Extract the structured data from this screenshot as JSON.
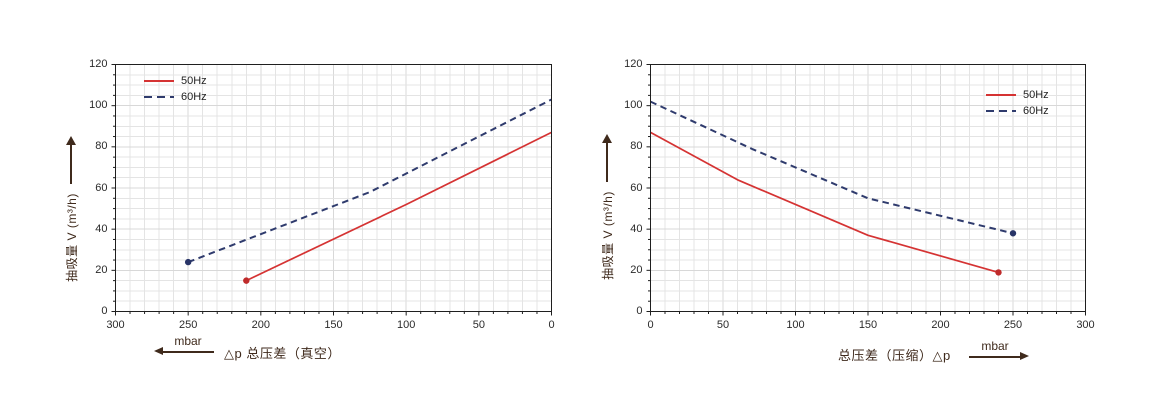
{
  "figure": {
    "description": "Two pump performance curves: suction capacity vs total pressure difference, vacuum (left) and compression (right)",
    "background": "#ffffff"
  },
  "colors": {
    "grid_minor": "#e4e4e4",
    "grid_major": "#d8d8d8",
    "plot_border": "#1f1f1f",
    "plot_background": "#ffffff",
    "tick_text": "#2b2b2b",
    "axis_label_text": "#3f2a1c",
    "legend_text": "#1f1f1f",
    "series_50hz": "#d53333",
    "series_60hz": "#2f3b6d"
  },
  "chart_data": [
    {
      "id": "vacuum",
      "type": "line",
      "title": "",
      "x_axis": {
        "label": "△p  总压差（真空）",
        "unit": "mbar",
        "arrow_direction": "left",
        "min": 0,
        "max": 300,
        "reversed": true,
        "ticks": [
          300,
          250,
          200,
          150,
          100,
          50,
          0
        ],
        "minor_step": 10
      },
      "y_axis": {
        "label": "抽吸量 V (m³/h)",
        "arrow_direction": "up",
        "min": 0,
        "max": 120,
        "ticks": [
          0,
          20,
          40,
          60,
          80,
          100,
          120
        ],
        "minor_step": 5
      },
      "grid": true,
      "legend_position": "top-left",
      "series": [
        {
          "name": "50Hz",
          "style": "solid",
          "color": "#d53333",
          "marker_color": "#bf2b2b",
          "points": [
            [
              210,
              15
            ],
            [
              100,
              52
            ],
            [
              0,
              87
            ]
          ],
          "marker_at_max_x": true
        },
        {
          "name": "60Hz",
          "style": "dashed",
          "color": "#2f3b6d",
          "marker_color": "#283467",
          "points": [
            [
              250,
              24
            ],
            [
              125,
              58
            ],
            [
              0,
              103
            ]
          ],
          "marker_at_max_x": true
        }
      ]
    },
    {
      "id": "compression",
      "type": "line",
      "title": "",
      "x_axis": {
        "label": "总压差（压缩）△p",
        "unit": "mbar",
        "arrow_direction": "right",
        "min": 0,
        "max": 300,
        "reversed": false,
        "ticks": [
          0,
          50,
          100,
          150,
          200,
          250,
          300
        ],
        "minor_step": 10
      },
      "y_axis": {
        "label": "抽吸量 V (m³/h)",
        "arrow_direction": "up",
        "min": 0,
        "max": 120,
        "ticks": [
          0,
          20,
          40,
          60,
          80,
          100,
          120
        ],
        "minor_step": 5
      },
      "grid": true,
      "legend_position": "top-right",
      "series": [
        {
          "name": "50Hz",
          "style": "solid",
          "color": "#d53333",
          "marker_color": "#bf2b2b",
          "points": [
            [
              0,
              87
            ],
            [
              60,
              64
            ],
            [
              150,
              37
            ],
            [
              240,
              19
            ]
          ],
          "marker_at_max_x": true
        },
        {
          "name": "60Hz",
          "style": "dashed",
          "color": "#2f3b6d",
          "marker_color": "#283467",
          "points": [
            [
              0,
              102
            ],
            [
              70,
              79
            ],
            [
              150,
              55
            ],
            [
              250,
              38
            ]
          ],
          "marker_at_max_x": true
        }
      ]
    }
  ]
}
